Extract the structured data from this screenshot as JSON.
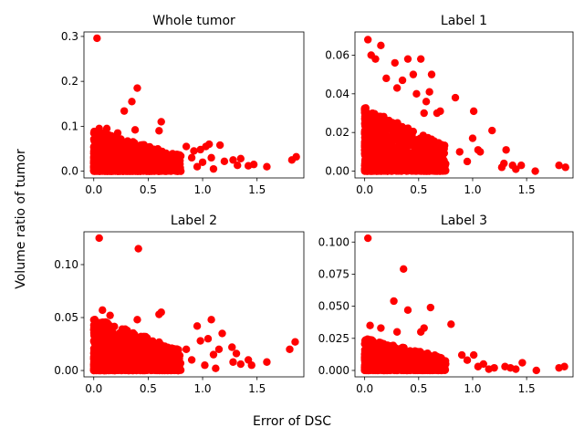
{
  "figure": {
    "ylabel": "Volume ratio of tumor",
    "xlabel": "Error of DSC"
  },
  "chart_data": [
    {
      "type": "scatter",
      "title": "Whole tumor",
      "color": "#ff0000",
      "xlim": [
        -0.09,
        1.93
      ],
      "ylim": [
        -0.015,
        0.31
      ],
      "xticks": [
        0.0,
        0.5,
        1.0,
        1.5
      ],
      "xticklabels": [
        "0.0",
        "0.5",
        "1.0",
        "1.5"
      ],
      "yticks": [
        0.0,
        0.1,
        0.2,
        0.3
      ],
      "yticklabels": [
        "0.0",
        "0.1",
        "0.2",
        "0.3"
      ],
      "cluster": {
        "xmax": 0.8,
        "ymax": 0.09,
        "n": 900
      },
      "points": [
        [
          0.03,
          0.296
        ],
        [
          0.4,
          0.185
        ],
        [
          0.35,
          0.155
        ],
        [
          0.28,
          0.134
        ],
        [
          0.62,
          0.11
        ],
        [
          0.05,
          0.095
        ],
        [
          0.12,
          0.095
        ],
        [
          0.6,
          0.09
        ],
        [
          0.38,
          0.092
        ],
        [
          0.22,
          0.085
        ],
        [
          0.85,
          0.055
        ],
        [
          0.92,
          0.045
        ],
        [
          1.06,
          0.06
        ],
        [
          1.16,
          0.058
        ],
        [
          1.03,
          0.055
        ],
        [
          0.98,
          0.048
        ],
        [
          1.08,
          0.03
        ],
        [
          1.2,
          0.022
        ],
        [
          1.28,
          0.025
        ],
        [
          1.35,
          0.028
        ],
        [
          1.32,
          0.013
        ],
        [
          1.42,
          0.012
        ],
        [
          1.47,
          0.015
        ],
        [
          1.59,
          0.01
        ],
        [
          1.82,
          0.025
        ],
        [
          1.86,
          0.032
        ],
        [
          0.95,
          0.01
        ],
        [
          1.1,
          0.005
        ],
        [
          1.0,
          0.02
        ],
        [
          0.9,
          0.03
        ]
      ]
    },
    {
      "type": "scatter",
      "title": "Label 1",
      "color": "#ff0000",
      "xlim": [
        -0.09,
        1.93
      ],
      "ylim": [
        -0.0035,
        0.072
      ],
      "xticks": [
        0.0,
        0.5,
        1.0,
        1.5
      ],
      "xticklabels": [
        "0.0",
        "0.5",
        "1.0",
        "1.5"
      ],
      "yticks": [
        0.0,
        0.02,
        0.04,
        0.06
      ],
      "yticklabels": [
        "0.00",
        "0.02",
        "0.04",
        "0.06"
      ],
      "cluster": {
        "xmax": 0.75,
        "ymax": 0.033,
        "n": 900
      },
      "points": [
        [
          0.03,
          0.068
        ],
        [
          0.06,
          0.06
        ],
        [
          0.15,
          0.065
        ],
        [
          0.1,
          0.058
        ],
        [
          0.4,
          0.058
        ],
        [
          0.52,
          0.058
        ],
        [
          0.28,
          0.056
        ],
        [
          0.62,
          0.05
        ],
        [
          0.45,
          0.05
        ],
        [
          0.6,
          0.041
        ],
        [
          0.35,
          0.047
        ],
        [
          0.2,
          0.048
        ],
        [
          0.84,
          0.038
        ],
        [
          1.01,
          0.031
        ],
        [
          1.05,
          0.011
        ],
        [
          1.07,
          0.01
        ],
        [
          1.0,
          0.017
        ],
        [
          1.18,
          0.021
        ],
        [
          1.31,
          0.011
        ],
        [
          1.29,
          0.004
        ],
        [
          1.27,
          0.002
        ],
        [
          1.37,
          0.003
        ],
        [
          1.45,
          0.003
        ],
        [
          1.4,
          0.001
        ],
        [
          1.58,
          0.0
        ],
        [
          1.8,
          0.003
        ],
        [
          1.86,
          0.002
        ],
        [
          0.95,
          0.005
        ],
        [
          0.88,
          0.01
        ],
        [
          0.7,
          0.031
        ],
        [
          0.67,
          0.03
        ],
        [
          0.55,
          0.03
        ],
        [
          0.57,
          0.036
        ],
        [
          0.48,
          0.04
        ],
        [
          0.3,
          0.043
        ]
      ]
    },
    {
      "type": "scatter",
      "title": "Label 2",
      "color": "#ff0000",
      "xlim": [
        -0.09,
        1.93
      ],
      "ylim": [
        -0.006,
        0.131
      ],
      "xticks": [
        0.0,
        0.5,
        1.0,
        1.5
      ],
      "xticklabels": [
        "0.0",
        "0.5",
        "1.0",
        "1.5"
      ],
      "yticks": [
        0.0,
        0.05,
        0.1
      ],
      "yticklabels": [
        "0.00",
        "0.05",
        "0.10"
      ],
      "cluster": {
        "xmax": 0.8,
        "ymax": 0.05,
        "n": 900
      },
      "points": [
        [
          0.05,
          0.125
        ],
        [
          0.41,
          0.115
        ],
        [
          0.6,
          0.053
        ],
        [
          0.62,
          0.055
        ],
        [
          0.4,
          0.048
        ],
        [
          0.08,
          0.057
        ],
        [
          0.15,
          0.052
        ],
        [
          0.95,
          0.042
        ],
        [
          1.08,
          0.048
        ],
        [
          1.18,
          0.035
        ],
        [
          1.05,
          0.03
        ],
        [
          0.98,
          0.028
        ],
        [
          1.15,
          0.02
        ],
        [
          1.1,
          0.015
        ],
        [
          1.27,
          0.022
        ],
        [
          1.31,
          0.016
        ],
        [
          1.28,
          0.008
        ],
        [
          1.35,
          0.006
        ],
        [
          1.42,
          0.01
        ],
        [
          1.45,
          0.005
        ],
        [
          1.59,
          0.008
        ],
        [
          1.8,
          0.02
        ],
        [
          1.85,
          0.027
        ],
        [
          0.9,
          0.01
        ],
        [
          1.02,
          0.005
        ],
        [
          1.12,
          0.002
        ],
        [
          0.85,
          0.02
        ]
      ]
    },
    {
      "type": "scatter",
      "title": "Label 3",
      "color": "#ff0000",
      "xlim": [
        -0.09,
        1.93
      ],
      "ylim": [
        -0.005,
        0.108
      ],
      "xticks": [
        0.0,
        0.5,
        1.0,
        1.5
      ],
      "xticklabels": [
        "0.0",
        "0.5",
        "1.0",
        "1.5"
      ],
      "yticks": [
        0.0,
        0.025,
        0.05,
        0.075,
        0.1
      ],
      "yticklabels": [
        "0.000",
        "0.025",
        "0.050",
        "0.075",
        "0.100"
      ],
      "cluster": {
        "xmax": 0.75,
        "ymax": 0.025,
        "n": 900
      },
      "points": [
        [
          0.03,
          0.103
        ],
        [
          0.36,
          0.079
        ],
        [
          0.27,
          0.054
        ],
        [
          0.4,
          0.047
        ],
        [
          0.61,
          0.049
        ],
        [
          0.52,
          0.03
        ],
        [
          0.55,
          0.033
        ],
        [
          0.8,
          0.036
        ],
        [
          0.05,
          0.035
        ],
        [
          0.15,
          0.033
        ],
        [
          0.3,
          0.03
        ],
        [
          0.9,
          0.012
        ],
        [
          1.01,
          0.012
        ],
        [
          0.95,
          0.008
        ],
        [
          1.1,
          0.005
        ],
        [
          1.05,
          0.003
        ],
        [
          1.15,
          0.001
        ],
        [
          1.2,
          0.002
        ],
        [
          1.3,
          0.003
        ],
        [
          1.35,
          0.002
        ],
        [
          1.4,
          0.001
        ],
        [
          1.46,
          0.006
        ],
        [
          1.59,
          0.0
        ],
        [
          1.8,
          0.002
        ],
        [
          1.85,
          0.003
        ],
        [
          0.7,
          0.01
        ],
        [
          0.75,
          0.005
        ]
      ]
    }
  ]
}
